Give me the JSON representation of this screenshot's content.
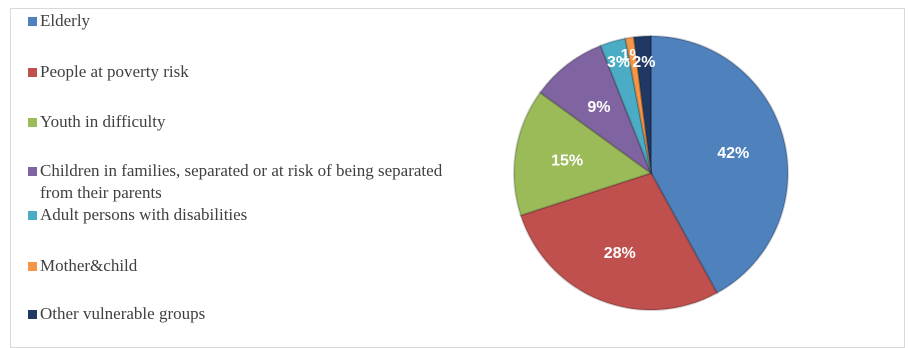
{
  "chart_data": {
    "type": "pie",
    "title": "",
    "legend_position": "left",
    "categories": [
      "Elderly",
      "People at poverty risk",
      "Youth in difficulty",
      "Children in families, separated or at risk of being separated from their parents",
      "Adult persons with disabilities",
      "Mother&child",
      "Other vulnerable groups"
    ],
    "values": [
      42,
      28,
      15,
      9,
      3,
      1,
      2
    ],
    "labels": [
      "42%",
      "28%",
      "15%",
      "9%",
      "3%",
      "1%",
      "2%"
    ],
    "colors": [
      "#4f81bd",
      "#c0504d",
      "#9bbb59",
      "#8064a2",
      "#4bacc6",
      "#f79646",
      "#1f3864"
    ]
  },
  "legend": {
    "items": [
      {
        "label": "Elderly",
        "color": "#4f81bd"
      },
      {
        "label": "People at poverty risk",
        "color": "#c0504d"
      },
      {
        "label": "Youth in difficulty",
        "color": "#9bbb59"
      },
      {
        "label": "Children in families, separated or at risk of being separated from their parents",
        "color": "#8064a2"
      },
      {
        "label": "Adult persons with disabilities",
        "color": "#4bacc6"
      },
      {
        "label": "Mother&child",
        "color": "#f79646"
      },
      {
        "label": "Other vulnerable groups",
        "color": "#1f3864"
      }
    ]
  }
}
